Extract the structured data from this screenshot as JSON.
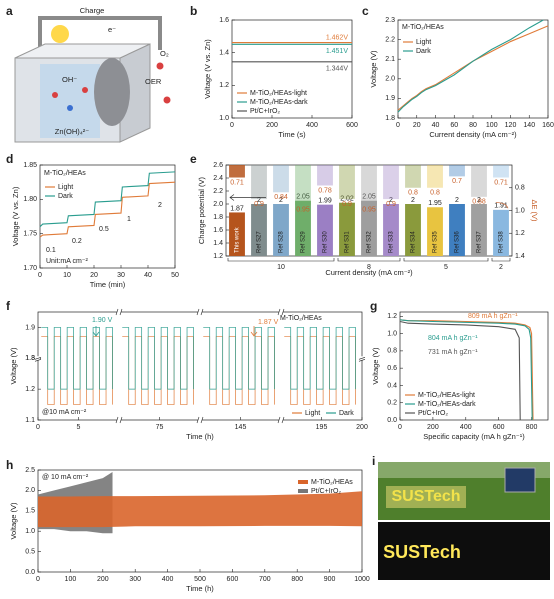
{
  "panel_a": {
    "label": "a",
    "charge": "Charge",
    "electron": "e⁻",
    "hydroxide": "OH⁻",
    "oxygen": "O₂",
    "reaction": "OER",
    "zincate": "Zn(OH)₄²⁻"
  },
  "panel_i": {
    "label": "i",
    "sign": "SUSTech"
  },
  "chart_data": [
    {
      "panel": "b",
      "type": "line",
      "xlabel": "Time (s)",
      "ylabel": "Voltage (V vs. Zn)",
      "xlim": [
        0,
        600
      ],
      "xticks": [
        0,
        200,
        400,
        600
      ],
      "ylim": [
        1,
        1.6
      ],
      "yticks": [
        {
          "value": 1,
          "label": "1.0"
        },
        1.2,
        1.4,
        1.6
      ],
      "legend": "lower left",
      "series": [
        {
          "name": "M-TiO₂/HEAs-light",
          "color": "#e07b39",
          "x": [
            0,
            600
          ],
          "values": [
            1.462,
            1.462
          ],
          "label": "1.462V"
        },
        {
          "name": "M-TiO₂/HEAs-dark",
          "color": "#2a9d8f",
          "x": [
            0,
            600
          ],
          "values": [
            1.451,
            1.451
          ],
          "label": "1.451V"
        },
        {
          "name": "Pt/C+IrO₂",
          "color": "#555555",
          "x": [
            0,
            600
          ],
          "values": [
            1.344,
            1.344
          ],
          "label": "1.344V"
        }
      ]
    },
    {
      "panel": "c",
      "type": "line",
      "xlabel": "Current density (mA cm⁻²)",
      "ylabel": "Voltage (V)",
      "xlim": [
        0,
        160
      ],
      "xticks": [
        0,
        20,
        40,
        60,
        80,
        100,
        120,
        140,
        160
      ],
      "ylim": [
        1.8,
        2.3
      ],
      "yticks": [
        1.8,
        1.9,
        {
          "value": 2,
          "label": "2.0"
        },
        2.1,
        2.2,
        2.3
      ],
      "legend": "upper left",
      "annotations": [
        "M-TiO₂/HEAs"
      ],
      "series": [
        {
          "name": "Light",
          "color": "#e07b39",
          "x": [
            0,
            5,
            10,
            15,
            20,
            25,
            30,
            40,
            60,
            80,
            100,
            120,
            140,
            160
          ],
          "values": [
            1.84,
            1.86,
            1.88,
            1.9,
            1.915,
            1.935,
            1.95,
            1.97,
            2.03,
            2.09,
            2.14,
            2.19,
            2.23,
            2.27
          ]
        },
        {
          "name": "Dark",
          "color": "#2a9d8f",
          "x": [
            0,
            5,
            10,
            15,
            20,
            25,
            30,
            40,
            60,
            80,
            100,
            120,
            140,
            155
          ],
          "values": [
            1.83,
            1.855,
            1.875,
            1.895,
            1.91,
            1.93,
            1.945,
            1.965,
            2.02,
            2.09,
            2.15,
            2.2,
            2.26,
            2.3
          ]
        }
      ]
    },
    {
      "panel": "d",
      "type": "line",
      "xlabel": "Time (min)",
      "ylabel": "Voltage (V vs. Zn)",
      "xlim": [
        0,
        50
      ],
      "xticks": [
        0,
        10,
        20,
        30,
        40,
        50
      ],
      "ylim": [
        1.7,
        1.85
      ],
      "yticks": [
        {
          "value": 1.7,
          "label": "1.70"
        },
        1.75,
        {
          "value": 1.8,
          "label": "1.80"
        },
        1.85
      ],
      "legend": "upper left",
      "annotations": [
        "M-TiO₂/HEAs",
        "0.1",
        "0.2",
        "0.5",
        "1",
        "2",
        "Unit:mA cm⁻²"
      ],
      "series": [
        {
          "name": "Light",
          "color": "#e07b39",
          "x": [
            0,
            1,
            10,
            10.5,
            20,
            20.5,
            30,
            30.5,
            40,
            40.5,
            50
          ],
          "values": [
            1.745,
            1.748,
            1.75,
            1.76,
            1.762,
            1.778,
            1.78,
            1.803,
            1.805,
            1.823,
            1.825
          ]
        },
        {
          "name": "Dark",
          "color": "#2a9d8f",
          "x": [
            0,
            1,
            10,
            10.5,
            20,
            20.5,
            30,
            30.5,
            40,
            40.5,
            50
          ],
          "values": [
            1.76,
            1.764,
            1.766,
            1.776,
            1.778,
            1.796,
            1.798,
            1.818,
            1.82,
            1.838,
            1.84
          ]
        }
      ]
    },
    {
      "panel": "e",
      "type": "bar",
      "xlabel": "Current density (mA cm⁻²)",
      "ylabel": "Charge potential (V)",
      "y2label": "ΔE (V)",
      "categories": [
        "This work",
        "Ref S27",
        "Ref S28",
        "Ref S29",
        "Ref S30",
        "Ref S31",
        "Ref S32",
        "Ref S33",
        "Ref S34",
        "Ref S35",
        "Ref S36",
        "Ref S37",
        "Ref S38"
      ],
      "groups": [
        "10",
        "10",
        "10",
        "10",
        "10",
        "8",
        "8",
        "8",
        "5",
        "5",
        "5",
        "5",
        "2"
      ],
      "colors": [
        "#b5541c",
        "#7f8c8d",
        "#7fa7c9",
        "#6fae6a",
        "#9b7fc4",
        "#8a9a3c",
        "#9e9e9e",
        "#a58ac9",
        "#8a9a3c",
        "#e8c440",
        "#3f7fc0",
        "#a0a0a0",
        "#8ab8e0"
      ],
      "ylim": [
        1.2,
        2.6
      ],
      "yticks": [
        1.2,
        1.4,
        1.6,
        1.8,
        {
          "value": 2,
          "label": "2.0"
        },
        2.2,
        2.4,
        2.6
      ],
      "y2lim": [
        0.6,
        1.4
      ],
      "y2_inverted": true,
      "y2ticks": [
        0.8,
        {
          "value": 1,
          "label": "1.0"
        },
        1.2,
        1.4
      ],
      "series": [
        {
          "values": [
            1.87,
            2,
            2,
            2.05,
            1.99,
            2.02,
            2.05,
            2,
            2,
            1.95,
            2,
            2,
            1.91
          ]
        },
        {
          "axis": "y2",
          "values": [
            0.71,
            0.9,
            0.84,
            0.95,
            0.78,
            0.9,
            0.95,
            0.9,
            0.8,
            0.8,
            0.7,
            0.88,
            0.71
          ]
        }
      ]
    },
    {
      "panel": "f",
      "type": "line",
      "step": true,
      "xlabel": "Time (h)",
      "ylabel": "Voltage (V)",
      "xlim": [
        0,
        200
      ],
      "xbreaks": [
        [
          10,
          70
        ],
        [
          80,
          140
        ],
        [
          150,
          190
        ]
      ],
      "xticks": [
        0,
        5,
        75,
        145,
        195,
        200
      ],
      "ylim": [
        1.1,
        1.95
      ],
      "ybreaks": [
        [
          1.3,
          1.8
        ]
      ],
      "yticks": [
        1.1,
        1.2,
        1.3,
        1.8,
        1.9
      ],
      "legend": "lower right",
      "legend_direction": "row",
      "annotations": [
        "1.90 V",
        "1.87 V",
        "M-TiO₂/HEAs",
        "@10 mA cm⁻²"
      ],
      "series": [
        {
          "name": "Light",
          "color": "#e07b39",
          "x": [
            0.4,
            1.2,
            2,
            2.8,
            3.6,
            4.4,
            5.2,
            6,
            6.8,
            7.6,
            8.4,
            9.2,
            null,
            70.4,
            71.2,
            72,
            72.8,
            73.6,
            74.4,
            75.2,
            76,
            76.8,
            77.6,
            78.4,
            79.2,
            null,
            140.4,
            141.2,
            142,
            142.8,
            143.6,
            144.4,
            145.2,
            146,
            146.8,
            147.6,
            148.4,
            149.2,
            null,
            190.4,
            191.2,
            192,
            192.8,
            193.6,
            194.4,
            195.2,
            196,
            196.8,
            197.6,
            198.4,
            199.2
          ],
          "values": [
            1.87,
            1.15,
            1.87,
            1.15,
            1.87,
            1.15,
            1.87,
            1.15,
            1.87,
            1.15,
            1.87,
            1.15,
            null,
            1.87,
            1.15,
            1.87,
            1.15,
            1.87,
            1.15,
            1.87,
            1.15,
            1.87,
            1.15,
            1.87,
            1.15,
            null,
            1.87,
            1.15,
            1.87,
            1.15,
            1.87,
            1.15,
            1.87,
            1.15,
            1.87,
            1.15,
            1.87,
            1.15,
            null,
            1.87,
            1.15,
            1.87,
            1.15,
            1.87,
            1.15,
            1.87,
            1.15,
            1.87,
            1.15,
            1.87,
            1.15
          ]
        },
        {
          "name": "Dark",
          "color": "#2a9d8f",
          "x": [
            0.4,
            1.2,
            2,
            2.8,
            3.6,
            4.4,
            5.2,
            6,
            6.8,
            7.6,
            8.4,
            9.2,
            null,
            70.4,
            71.2,
            72,
            72.8,
            73.6,
            74.4,
            75.2,
            76,
            76.8,
            77.6,
            78.4,
            79.2,
            null,
            140.4,
            141.2,
            142,
            142.8,
            143.6,
            144.4,
            145.2,
            146,
            146.8,
            147.6,
            148.4,
            149.2,
            null,
            190.4,
            191.2,
            192,
            192.8,
            193.6,
            194.4,
            195.2,
            196,
            196.8,
            197.6,
            198.4,
            199.2
          ],
          "values": [
            1.9,
            1.2,
            1.9,
            1.2,
            1.9,
            1.2,
            1.9,
            1.2,
            1.9,
            1.2,
            1.9,
            1.2,
            null,
            1.9,
            1.2,
            1.9,
            1.2,
            1.9,
            1.2,
            1.9,
            1.2,
            1.9,
            1.2,
            1.9,
            1.2,
            null,
            1.9,
            1.2,
            1.9,
            1.2,
            1.9,
            1.2,
            1.9,
            1.2,
            1.9,
            1.2,
            1.9,
            1.2,
            null,
            1.9,
            1.2,
            1.9,
            1.2,
            1.9,
            1.2,
            1.9,
            1.2,
            1.9,
            1.2,
            1.9,
            1.2
          ]
        }
      ]
    },
    {
      "panel": "g",
      "type": "line",
      "xlabel": "Specific capacity (mA h gZn⁻¹)",
      "ylabel": "Voltage (V)",
      "xlim": [
        0,
        900
      ],
      "xticks": [
        0,
        200,
        400,
        600,
        800
      ],
      "ylim": [
        0,
        1.25
      ],
      "yticks": [
        {
          "value": 0,
          "label": "0.0"
        },
        0.2,
        0.4,
        0.6,
        0.8,
        {
          "value": 1,
          "label": "1.0"
        },
        1.2
      ],
      "legend": "lower left",
      "series": [
        {
          "name": "M-TiO₂/HEAs-light",
          "color": "#e07b39",
          "x": [
            0,
            50,
            200,
            400,
            600,
            700,
            760,
            790,
            800,
            809
          ],
          "values": [
            1.16,
            1.15,
            1.15,
            1.14,
            1.13,
            1.12,
            1.1,
            1.07,
            1,
            0
          ],
          "label": "809 mA h gZn⁻¹"
        },
        {
          "name": "M-TiO₂/HEAs-dark",
          "color": "#2a9d8f",
          "x": [
            0,
            50,
            200,
            400,
            600,
            700,
            760,
            785,
            795,
            804
          ],
          "values": [
            1.16,
            1.15,
            1.14,
            1.13,
            1.12,
            1.11,
            1.09,
            1.05,
            0.95,
            0
          ],
          "label": "804 mA h gZn⁻¹"
        },
        {
          "name": "Pt/C+IrO₂",
          "color": "#555555",
          "x": [
            0,
            50,
            200,
            400,
            600,
            700,
            725,
            731
          ],
          "values": [
            1.14,
            1.12,
            1.11,
            1.1,
            1.08,
            1.05,
            0.95,
            0
          ],
          "label": "731 mA h gZn⁻¹"
        }
      ]
    },
    {
      "panel": "h",
      "type": "band",
      "xlabel": "Time (h)",
      "ylabel": "Voltage (V)",
      "xlim": [
        0,
        1000
      ],
      "xticks": [
        0,
        100,
        200,
        300,
        400,
        500,
        600,
        700,
        800,
        900,
        1000
      ],
      "ylim": [
        0,
        2.5
      ],
      "yticks": [
        {
          "value": 0,
          "label": "0.0"
        },
        0.5,
        {
          "value": 1,
          "label": "1.0"
        },
        1.5,
        {
          "value": 2,
          "label": "2.0"
        },
        2.5
      ],
      "legend": "upper right",
      "annotations": [
        "@ 10 mA cm⁻²"
      ],
      "series": [
        {
          "name": "M-TiO₂/HEAs",
          "color": "#d9652b",
          "x": [
            0,
            100,
            200,
            300,
            500,
            700,
            900,
            1000
          ],
          "upper": [
            1.85,
            1.85,
            1.86,
            1.86,
            1.87,
            1.88,
            1.92,
            1.98
          ],
          "lower": [
            1.1,
            1.1,
            1.1,
            1.12,
            1.12,
            1.13,
            1.13,
            1.12
          ]
        },
        {
          "name": "Pt/C+IrO₂",
          "color": "#777777",
          "x": [
            0,
            50,
            100,
            150,
            200,
            230
          ],
          "upper": [
            1.9,
            2,
            2.1,
            2.2,
            2.3,
            2.45
          ],
          "lower": [
            1.05,
            1.05,
            1,
            1,
            0.95,
            0.95
          ]
        }
      ]
    }
  ]
}
